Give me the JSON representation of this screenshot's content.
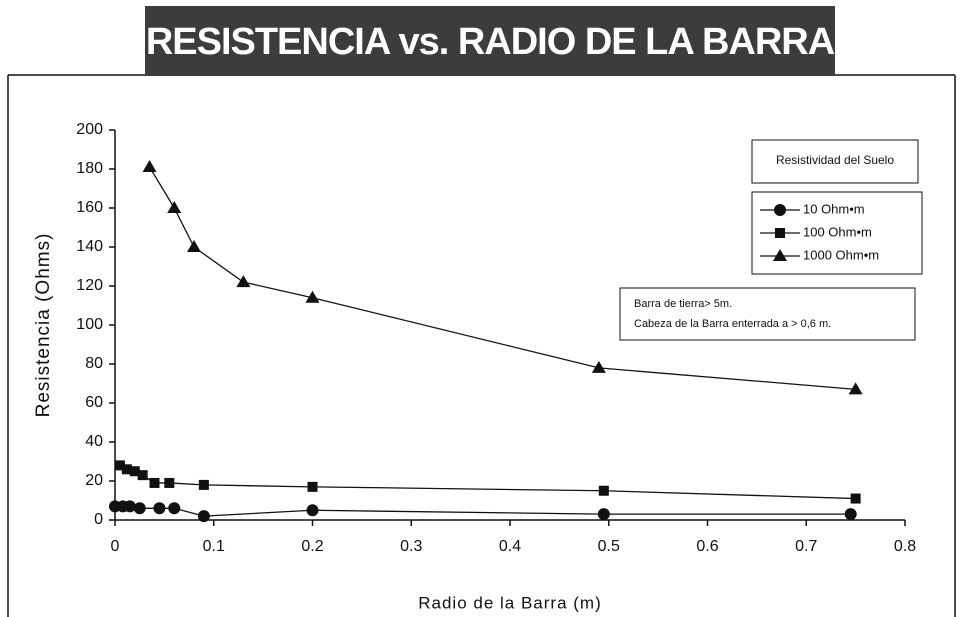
{
  "chart_data": {
    "type": "line",
    "title": "RESISTENCIA vs. RADIO DE LA BARRA",
    "x_label": "Radio de la Barra  (m)",
    "y_label": "Resistencia (Ohms)",
    "legend_title": "Resistividad del Suelo",
    "annotations": [
      "Barra de tierra> 5m.",
      "Cabeza de la Barra enterrada a > 0,6 m."
    ],
    "xlim": [
      0,
      0.8
    ],
    "xticks": [
      0,
      0.1,
      0.2,
      0.3,
      0.4,
      0.5,
      0.6,
      0.7,
      0.8
    ],
    "ylim": [
      0,
      200
    ],
    "yticks": [
      0,
      20,
      40,
      60,
      80,
      100,
      120,
      140,
      160,
      180,
      200
    ],
    "series": [
      {
        "name": "10 Ohm•m",
        "color": "#111111",
        "marker": "circle",
        "x": [
          0,
          0.008,
          0.015,
          0.025,
          0.045,
          0.06,
          0.09,
          0.2,
          0.495,
          0.745
        ],
        "values": [
          7,
          7,
          7,
          6,
          6,
          6,
          2,
          5,
          3,
          3
        ]
      },
      {
        "name": "100 Ohm•m",
        "color": "#111111",
        "marker": "square",
        "x": [
          0.005,
          0.012,
          0.02,
          0.028,
          0.04,
          0.055,
          0.09,
          0.2,
          0.495,
          0.75
        ],
        "values": [
          28,
          26,
          25,
          23,
          19,
          19,
          18,
          17,
          15,
          11
        ]
      },
      {
        "name": "1000 Ohm•m",
        "color": "#111111",
        "marker": "triangle",
        "x": [
          0.035,
          0.06,
          0.08,
          0.13,
          0.2,
          0.49,
          0.75
        ],
        "values": [
          181,
          160,
          140,
          122,
          114,
          78,
          67
        ]
      }
    ]
  }
}
